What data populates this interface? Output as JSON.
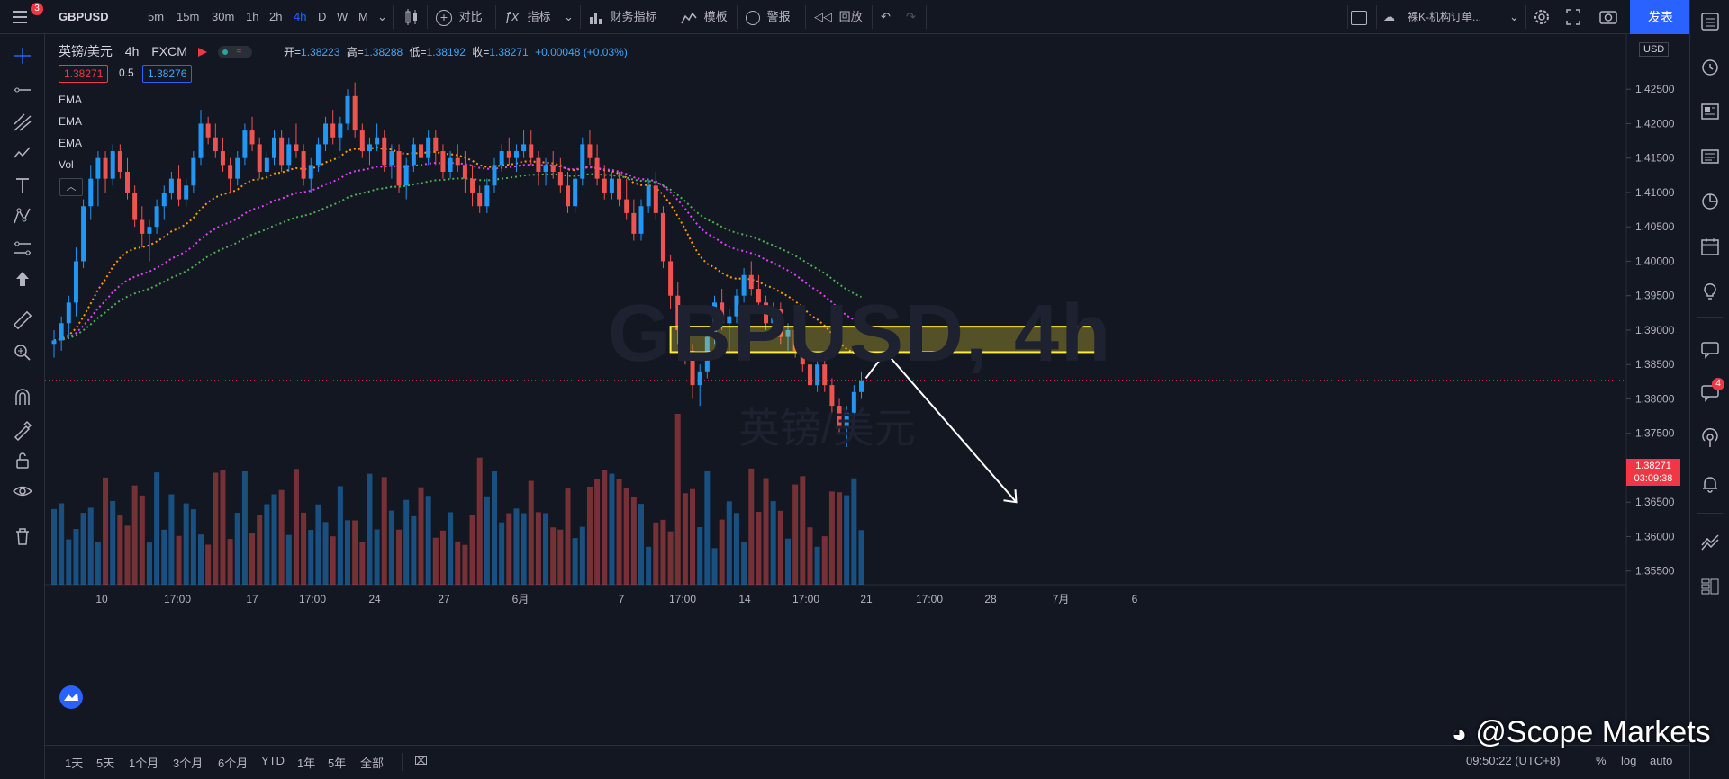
{
  "toolbar": {
    "menu_badge": "3",
    "symbol": "GBPUSD",
    "intervals": [
      "5m",
      "15m",
      "30m",
      "1h",
      "2h",
      "4h",
      "D",
      "W",
      "M"
    ],
    "active_interval": "4h",
    "compare": "对比",
    "indicators": "指标",
    "financials": "财务指标",
    "templates": "模板",
    "alerts": "警报",
    "replay": "回放",
    "layout_name": "裸K-机构订单...",
    "publish": "发表"
  },
  "legend": {
    "name": "英镑/美元",
    "interval": "4h",
    "exchange": "FXCM",
    "open_label": "开",
    "open": "1.38223",
    "high_label": "高",
    "high": "1.38288",
    "low_label": "低",
    "low": "1.38192",
    "close_label": "收",
    "close": "1.38271",
    "change": "+0.00048 (+0.03%)",
    "bid": "1.38271",
    "spread": "0.5",
    "ask": "1.38276"
  },
  "indicators": [
    "EMA",
    "EMA",
    "EMA",
    "Vol"
  ],
  "watermark": {
    "symbol": "GBPUSD, 4h",
    "name": "英镑/美元"
  },
  "price_axis": {
    "currency": "USD",
    "labels": [
      "1.42500",
      "1.42000",
      "1.41500",
      "1.41000",
      "1.40500",
      "1.40000",
      "1.39500",
      "1.39000",
      "1.38500",
      "1.38000",
      "1.37500",
      "1.37000",
      "1.36500",
      "1.36000",
      "1.35500"
    ],
    "current_price": "1.38271",
    "countdown": "03:09:38"
  },
  "time_axis": {
    "labels": [
      "10",
      "17:00",
      "17",
      "17:00",
      "24",
      "27",
      "6月",
      "7",
      "17:00",
      "14",
      "17:00",
      "21",
      "17:00",
      "28",
      "7月",
      "6"
    ]
  },
  "bottom": {
    "ranges": [
      "1天",
      "5天",
      "1个月",
      "3个月",
      "6个月",
      "YTD",
      "1年",
      "5年",
      "全部"
    ],
    "clock": "09:50:22 (UTC+8)",
    "percent": "%",
    "log": "log",
    "auto": "auto"
  },
  "right_badge": "4",
  "brand": "@Scope Markets",
  "colors": {
    "up": "#2196f3",
    "down": "#ef5350",
    "ema_fast": "#ff9800",
    "ema_mid": "#e040fb",
    "ema_slow": "#4caf50",
    "zone": "#ffeb3b"
  },
  "chart_data": {
    "type": "candlestick",
    "symbol": "GBPUSD",
    "interval": "4h",
    "ylim": [
      1.353,
      1.433
    ],
    "current_price": 1.38271,
    "bars": [
      [
        1.388,
        1.39,
        1.386,
        1.3885
      ],
      [
        1.3885,
        1.392,
        1.387,
        1.391
      ],
      [
        1.391,
        1.395,
        1.389,
        1.394
      ],
      [
        1.394,
        1.402,
        1.392,
        1.4
      ],
      [
        1.4,
        1.409,
        1.399,
        1.408
      ],
      [
        1.408,
        1.414,
        1.406,
        1.412
      ],
      [
        1.412,
        1.416,
        1.408,
        1.415
      ],
      [
        1.415,
        1.416,
        1.41,
        1.412
      ],
      [
        1.412,
        1.417,
        1.411,
        1.416
      ],
      [
        1.416,
        1.417,
        1.412,
        1.413
      ],
      [
        1.413,
        1.415,
        1.409,
        1.41
      ],
      [
        1.41,
        1.411,
        1.405,
        1.406
      ],
      [
        1.406,
        1.408,
        1.402,
        1.404
      ],
      [
        1.404,
        1.406,
        1.4,
        1.405
      ],
      [
        1.405,
        1.409,
        1.404,
        1.408
      ],
      [
        1.408,
        1.411,
        1.406,
        1.41
      ],
      [
        1.41,
        1.413,
        1.409,
        1.412
      ],
      [
        1.412,
        1.414,
        1.408,
        1.409
      ],
      [
        1.409,
        1.412,
        1.408,
        1.411
      ],
      [
        1.411,
        1.416,
        1.41,
        1.415
      ],
      [
        1.415,
        1.422,
        1.414,
        1.42
      ],
      [
        1.42,
        1.421,
        1.417,
        1.418
      ],
      [
        1.418,
        1.42,
        1.415,
        1.416
      ],
      [
        1.416,
        1.418,
        1.413,
        1.414
      ],
      [
        1.414,
        1.415,
        1.41,
        1.412
      ],
      [
        1.412,
        1.416,
        1.411,
        1.415
      ],
      [
        1.415,
        1.42,
        1.414,
        1.419
      ],
      [
        1.419,
        1.421,
        1.416,
        1.417
      ],
      [
        1.417,
        1.418,
        1.412,
        1.413
      ],
      [
        1.413,
        1.416,
        1.412,
        1.415
      ],
      [
        1.415,
        1.419,
        1.414,
        1.418
      ],
      [
        1.418,
        1.419,
        1.413,
        1.414
      ],
      [
        1.414,
        1.418,
        1.413,
        1.417
      ],
      [
        1.417,
        1.42,
        1.415,
        1.416
      ],
      [
        1.416,
        1.417,
        1.411,
        1.412
      ],
      [
        1.412,
        1.415,
        1.41,
        1.414
      ],
      [
        1.414,
        1.418,
        1.413,
        1.417
      ],
      [
        1.417,
        1.421,
        1.416,
        1.42
      ],
      [
        1.42,
        1.422,
        1.417,
        1.418
      ],
      [
        1.418,
        1.421,
        1.416,
        1.42
      ],
      [
        1.42,
        1.425,
        1.419,
        1.424
      ],
      [
        1.424,
        1.426,
        1.418,
        1.419
      ],
      [
        1.419,
        1.42,
        1.415,
        1.416
      ],
      [
        1.416,
        1.418,
        1.414,
        1.417
      ],
      [
        1.417,
        1.42,
        1.416,
        1.418
      ],
      [
        1.418,
        1.419,
        1.413,
        1.414
      ],
      [
        1.414,
        1.417,
        1.412,
        1.416
      ],
      [
        1.416,
        1.417,
        1.41,
        1.411
      ],
      [
        1.411,
        1.415,
        1.409,
        1.414
      ],
      [
        1.414,
        1.418,
        1.413,
        1.417
      ],
      [
        1.417,
        1.418,
        1.413,
        1.415
      ],
      [
        1.415,
        1.419,
        1.414,
        1.418
      ],
      [
        1.418,
        1.419,
        1.414,
        1.416
      ],
      [
        1.416,
        1.417,
        1.412,
        1.413
      ],
      [
        1.413,
        1.416,
        1.412,
        1.415
      ],
      [
        1.415,
        1.417,
        1.413,
        1.414
      ],
      [
        1.414,
        1.416,
        1.41,
        1.412
      ],
      [
        1.412,
        1.414,
        1.408,
        1.41
      ],
      [
        1.41,
        1.411,
        1.407,
        1.408
      ],
      [
        1.408,
        1.412,
        1.407,
        1.411
      ],
      [
        1.411,
        1.415,
        1.41,
        1.414
      ],
      [
        1.414,
        1.417,
        1.413,
        1.416
      ],
      [
        1.416,
        1.418,
        1.414,
        1.415
      ],
      [
        1.415,
        1.417,
        1.413,
        1.416
      ],
      [
        1.416,
        1.419,
        1.415,
        1.417
      ],
      [
        1.417,
        1.419,
        1.414,
        1.415
      ],
      [
        1.415,
        1.416,
        1.411,
        1.413
      ],
      [
        1.413,
        1.415,
        1.411,
        1.414
      ],
      [
        1.414,
        1.416,
        1.412,
        1.413
      ],
      [
        1.413,
        1.415,
        1.41,
        1.411
      ],
      [
        1.411,
        1.413,
        1.407,
        1.408
      ],
      [
        1.408,
        1.413,
        1.407,
        1.412
      ],
      [
        1.412,
        1.418,
        1.411,
        1.417
      ],
      [
        1.417,
        1.419,
        1.414,
        1.415
      ],
      [
        1.415,
        1.417,
        1.411,
        1.412
      ],
      [
        1.412,
        1.414,
        1.409,
        1.41
      ],
      [
        1.41,
        1.413,
        1.409,
        1.412
      ],
      [
        1.412,
        1.413,
        1.408,
        1.409
      ],
      [
        1.409,
        1.412,
        1.406,
        1.407
      ],
      [
        1.407,
        1.409,
        1.403,
        1.404
      ],
      [
        1.404,
        1.409,
        1.403,
        1.408
      ],
      [
        1.408,
        1.412,
        1.407,
        1.411
      ],
      [
        1.411,
        1.413,
        1.406,
        1.407
      ],
      [
        1.407,
        1.408,
        1.399,
        1.4
      ],
      [
        1.4,
        1.401,
        1.393,
        1.395
      ],
      [
        1.395,
        1.397,
        1.388,
        1.39
      ],
      [
        1.39,
        1.391,
        1.385,
        1.387
      ],
      [
        1.387,
        1.388,
        1.38,
        1.382
      ],
      [
        1.382,
        1.385,
        1.379,
        1.384
      ],
      [
        1.384,
        1.39,
        1.383,
        1.389
      ],
      [
        1.389,
        1.395,
        1.388,
        1.394
      ],
      [
        1.394,
        1.396,
        1.39,
        1.391
      ],
      [
        1.391,
        1.393,
        1.387,
        1.392
      ],
      [
        1.392,
        1.396,
        1.391,
        1.395
      ],
      [
        1.395,
        1.399,
        1.394,
        1.398
      ],
      [
        1.398,
        1.4,
        1.395,
        1.396
      ],
      [
        1.396,
        1.398,
        1.393,
        1.394
      ],
      [
        1.394,
        1.395,
        1.39,
        1.391
      ],
      [
        1.391,
        1.394,
        1.39,
        1.393
      ],
      [
        1.393,
        1.394,
        1.388,
        1.389
      ],
      [
        1.389,
        1.391,
        1.387,
        1.39
      ],
      [
        1.39,
        1.392,
        1.386,
        1.387
      ],
      [
        1.387,
        1.388,
        1.384,
        1.385
      ],
      [
        1.385,
        1.387,
        1.381,
        1.382
      ],
      [
        1.382,
        1.386,
        1.381,
        1.385
      ],
      [
        1.385,
        1.387,
        1.381,
        1.382
      ],
      [
        1.382,
        1.383,
        1.378,
        1.379
      ],
      [
        1.379,
        1.38,
        1.375,
        1.376
      ],
      [
        1.376,
        1.379,
        1.373,
        1.378
      ],
      [
        1.378,
        1.382,
        1.377,
        1.381
      ],
      [
        1.381,
        1.384,
        1.38,
        1.3827
      ]
    ],
    "ema_fast_end": 1.387,
    "ema_mid_end": 1.3905,
    "ema_slow_end": 1.3935,
    "zone": {
      "top": 1.3905,
      "bottom": 1.3868
    },
    "arrow": [
      [
        1.383,
        "now"
      ],
      [
        1.3868,
        "+3"
      ],
      [
        1.365,
        "+21"
      ]
    ]
  }
}
